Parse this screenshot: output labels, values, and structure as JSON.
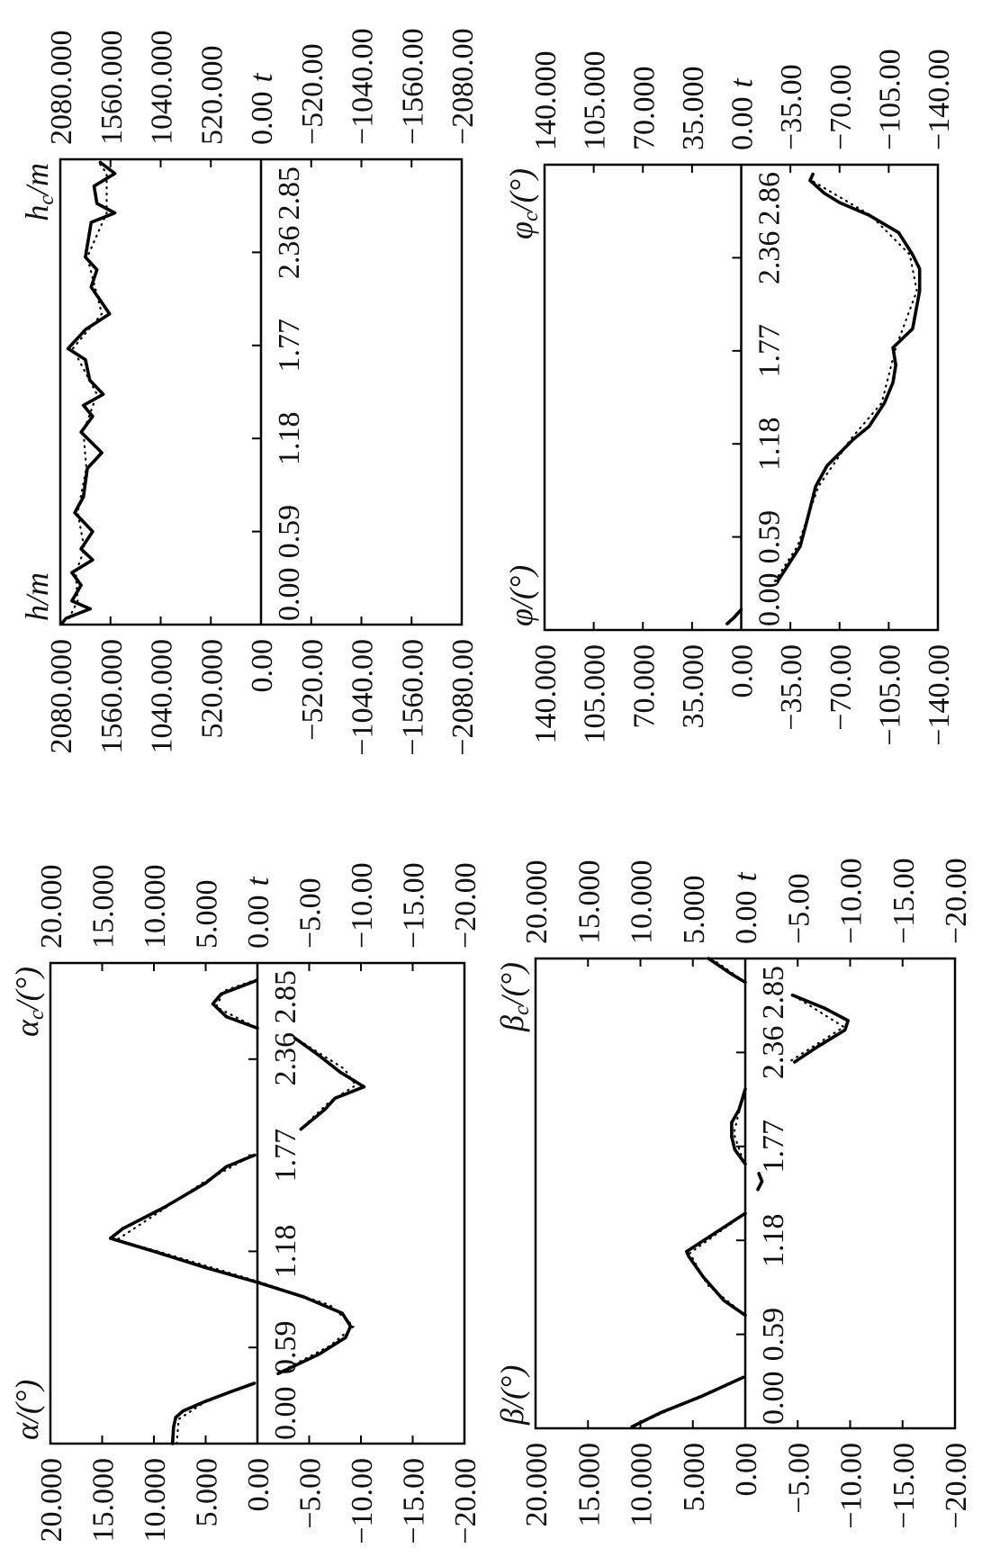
{
  "chart_data": [
    {
      "type": "line",
      "y_title": {
        "symbol": "α",
        "sub": "",
        "unit": "/(°)"
      },
      "y2_title": {
        "symbol": "α",
        "sub": "c",
        "unit": "/(°)"
      },
      "x_label": "t",
      "x_ticks": [
        "0.00",
        "0.59",
        "1.18",
        "1.77",
        "2.36",
        "2.85"
      ],
      "y_ticks": [
        "20.000",
        "15.000",
        "10.000",
        "5.000",
        "0.00",
        "−5.00",
        "−10.00",
        "−15.00",
        "−20.00"
      ],
      "xlim": [
        0,
        2.95
      ],
      "ylim": [
        -20,
        20
      ],
      "grid": false,
      "series": [
        {
          "name": "α/(°)",
          "style": "solid",
          "color": "#000000",
          "segments": [
            [
              [
                0,
                8.2
              ],
              [
                0.1,
                8.1
              ],
              [
                0.16,
                7.9
              ],
              [
                0.2,
                7.2
              ],
              [
                0.26,
                5.0
              ],
              [
                0.32,
                2.5
              ],
              [
                0.37,
                0.3
              ]
            ],
            [
              [
                0.43,
                -2
              ],
              [
                0.55,
                -6
              ],
              [
                0.65,
                -8.5
              ],
              [
                0.72,
                -9
              ],
              [
                0.8,
                -8.2
              ],
              [
                0.9,
                -4.5
              ],
              [
                0.99,
                0
              ],
              [
                1.08,
                5
              ],
              [
                1.18,
                10
              ],
              [
                1.26,
                14.2
              ],
              [
                1.32,
                13
              ],
              [
                1.45,
                9
              ],
              [
                1.6,
                5
              ],
              [
                1.7,
                3
              ],
              [
                1.77,
                0.3
              ]
            ],
            [
              [
                1.93,
                -4.2
              ],
              [
                2.05,
                -6.5
              ],
              [
                2.12,
                -7.5
              ],
              [
                2.19,
                -10.3
              ],
              [
                2.28,
                -8
              ],
              [
                2.38,
                -6
              ],
              [
                2.49,
                -3.6
              ]
            ],
            [
              [
                2.55,
                0
              ],
              [
                2.62,
                3
              ],
              [
                2.7,
                4.3
              ],
              [
                2.76,
                3.5
              ],
              [
                2.84,
                0.2
              ]
            ]
          ]
        },
        {
          "name": "α_c/(°)",
          "style": "dotted",
          "color": "#000000",
          "segments": [
            [
              [
                0,
                7.8
              ],
              [
                0.15,
                7.6
              ],
              [
                0.25,
                5.2
              ],
              [
                0.37,
                0.5
              ]
            ],
            [
              [
                0.45,
                -2.5
              ],
              [
                0.6,
                -7
              ],
              [
                0.72,
                -9.3
              ],
              [
                0.85,
                -7
              ],
              [
                0.99,
                -0.3
              ],
              [
                1.18,
                9.6
              ],
              [
                1.25,
                13.6
              ],
              [
                1.4,
                10
              ],
              [
                1.6,
                5.3
              ],
              [
                1.77,
                0.5
              ]
            ],
            [
              [
                1.95,
                -4.5
              ],
              [
                2.1,
                -7
              ],
              [
                2.2,
                -9.5
              ],
              [
                2.3,
                -8.4
              ],
              [
                2.48,
                -3.9
              ]
            ],
            [
              [
                2.56,
                0.3
              ],
              [
                2.68,
                4.0
              ],
              [
                2.78,
                3.2
              ],
              [
                2.85,
                0
              ]
            ]
          ]
        }
      ]
    },
    {
      "type": "line",
      "y_title": {
        "symbol": "β",
        "sub": "",
        "unit": "/(°)"
      },
      "y2_title": {
        "symbol": "β",
        "sub": "c",
        "unit": "/(°)"
      },
      "x_label": "t",
      "x_ticks": [
        "0.00",
        "0.59",
        "1.18",
        "1.77",
        "2.36",
        "2.85"
      ],
      "y_ticks": [
        "20.000",
        "15.000",
        "10.000",
        "5.000",
        "0.00",
        "−5.00",
        "−10.00",
        "−15.00",
        "−20.00"
      ],
      "xlim": [
        0,
        2.95
      ],
      "ylim": [
        -20,
        20
      ],
      "grid": false,
      "series": [
        {
          "name": "β/(°)",
          "style": "solid",
          "color": "#000000",
          "segments": [
            [
              [
                0.01,
                10.8
              ],
              [
                0.1,
                8
              ],
              [
                0.2,
                4.2
              ],
              [
                0.32,
                0.2
              ]
            ],
            [
              [
                0.71,
                0
              ],
              [
                0.8,
                2
              ],
              [
                0.95,
                4
              ],
              [
                1.08,
                5.4
              ],
              [
                1.11,
                5.6
              ],
              [
                1.2,
                3.5
              ],
              [
                1.35,
                0
              ]
            ],
            [
              [
                1.5,
                -1.2
              ],
              [
                1.55,
                -1.6
              ],
              [
                1.6,
                -1.3
              ]
            ],
            [
              [
                1.66,
                0
              ],
              [
                1.75,
                1
              ],
              [
                1.83,
                1.3
              ],
              [
                1.92,
                1.3
              ],
              [
                2.0,
                0.6
              ],
              [
                2.13,
                0
              ]
            ],
            [
              [
                2.3,
                -4.7
              ],
              [
                2.4,
                -7
              ],
              [
                2.5,
                -9.5
              ],
              [
                2.56,
                -9.8
              ],
              [
                2.64,
                -7.5
              ],
              [
                2.72,
                -4.5
              ]
            ],
            [
              [
                2.8,
                0
              ],
              [
                2.86,
                1.5
              ],
              [
                2.95,
                3.5
              ]
            ]
          ]
        },
        {
          "name": "β_c/(°)",
          "style": "dotted",
          "color": "#000000",
          "segments": [
            [
              [
                0.02,
                10.5
              ],
              [
                0.32,
                0.3
              ]
            ],
            [
              [
                0.72,
                0.2
              ],
              [
                0.9,
                3.6
              ],
              [
                1.1,
                5.3
              ],
              [
                1.34,
                0.2
              ]
            ],
            [
              [
                1.68,
                0.2
              ],
              [
                1.85,
                1.1
              ],
              [
                2.12,
                0.1
              ]
            ],
            [
              [
                2.31,
                -4.4
              ],
              [
                2.52,
                -9.4
              ],
              [
                2.71,
                -4.8
              ]
            ],
            [
              [
                2.81,
                0.2
              ],
              [
                2.95,
                3.2
              ]
            ]
          ]
        }
      ]
    },
    {
      "type": "line",
      "y_title": {
        "symbol": "h",
        "sub": "",
        "unit": "/m"
      },
      "y2_title": {
        "symbol": "h",
        "sub": "c",
        "unit": "/m"
      },
      "x_label": "t",
      "x_ticks": [
        "0.00",
        "0.59",
        "1.18",
        "1.77",
        "2.36",
        "2.85"
      ],
      "y_ticks": [
        "2080.000",
        "1560.000",
        "1040.000",
        "520.000",
        "0.00",
        "−520.00",
        "−1040.00",
        "−1560.00",
        "−2080.00"
      ],
      "xlim": [
        0,
        2.95
      ],
      "ylim": [
        -2080,
        2080
      ],
      "grid": false,
      "series": [
        {
          "name": "h/m",
          "style": "solid",
          "color": "#000000",
          "segments": [
            [
              [
                0.01,
                2060
              ],
              [
                0.04,
                2020
              ],
              [
                0.1,
                1770
              ],
              [
                0.15,
                1960
              ],
              [
                0.25,
                1865
              ],
              [
                0.33,
                1960
              ],
              [
                0.41,
                1745
              ],
              [
                0.48,
                1865
              ],
              [
                0.59,
                1745
              ],
              [
                0.71,
                1930
              ],
              [
                0.81,
                1840
              ],
              [
                0.99,
                1800
              ],
              [
                1.09,
                1650
              ],
              [
                1.22,
                1865
              ],
              [
                1.32,
                1745
              ],
              [
                1.39,
                1840
              ],
              [
                1.46,
                1635
              ],
              [
                1.55,
                1775
              ],
              [
                1.68,
                1820
              ],
              [
                1.75,
                2000
              ],
              [
                1.87,
                1820
              ],
              [
                1.97,
                1570
              ],
              [
                2.14,
                1760
              ],
              [
                2.25,
                1700
              ],
              [
                2.33,
                1820
              ],
              [
                2.55,
                1760
              ],
              [
                2.61,
                1515
              ],
              [
                2.67,
                1700
              ],
              [
                2.78,
                1730
              ],
              [
                2.86,
                1515
              ],
              [
                2.93,
                1665
              ]
            ]
          ]
        },
        {
          "name": "h_c/m",
          "style": "dotted",
          "color": "#000000",
          "segments": [
            [
              [
                0.04,
                1990
              ],
              [
                0.15,
                1900
              ],
              [
                0.33,
                1920
              ],
              [
                0.48,
                1830
              ],
              [
                0.71,
                1900
              ],
              [
                0.99,
                1810
              ],
              [
                1.22,
                1840
              ],
              [
                1.46,
                1700
              ],
              [
                1.75,
                1950
              ],
              [
                1.97,
                1650
              ],
              [
                2.33,
                1800
              ],
              [
                2.61,
                1600
              ],
              [
                2.86,
                1600
              ],
              [
                2.93,
                1680
              ]
            ]
          ]
        }
      ]
    },
    {
      "type": "line",
      "y_title": {
        "symbol": "φ",
        "sub": "",
        "unit": "/(°)"
      },
      "y2_title": {
        "symbol": "φ",
        "sub": "c",
        "unit": "/(°)"
      },
      "x_label": "t",
      "x_ticks": [
        "0.00",
        "0.59",
        "1.18",
        "1.77",
        "2.36",
        "2.86"
      ],
      "y_ticks": [
        "140.000",
        "105.000",
        "70.000",
        "35.000",
        "0.00",
        "−35.00",
        "−70.00",
        "−105.00",
        "−140.00"
      ],
      "xlim": [
        0,
        2.95
      ],
      "ylim": [
        -140,
        140
      ],
      "grid": false,
      "series": [
        {
          "name": "φ/(°)",
          "style": "solid",
          "color": "#000000",
          "segments": [
            [
              [
                0.04,
                10
              ],
              [
                0.08,
                5
              ],
              [
                0.13,
                0
              ]
            ],
            [
              [
                0.31,
                -26
              ],
              [
                0.53,
                -42
              ],
              [
                0.7,
                -47
              ],
              [
                0.91,
                -53
              ],
              [
                1.04,
                -61
              ],
              [
                1.21,
                -80
              ],
              [
                1.29,
                -91
              ],
              [
                1.44,
                -102
              ],
              [
                1.57,
                -108
              ],
              [
                1.68,
                -110
              ],
              [
                1.79,
                -108
              ],
              [
                1.91,
                -122
              ],
              [
                2.15,
                -127
              ],
              [
                2.29,
                -127
              ],
              [
                2.38,
                -122
              ],
              [
                2.52,
                -112
              ],
              [
                2.63,
                -91
              ],
              [
                2.71,
                -70
              ],
              [
                2.77,
                -59
              ],
              [
                2.85,
                -49
              ],
              [
                2.89,
                -51
              ]
            ]
          ]
        },
        {
          "name": "φ_c/(°)",
          "style": "dotted",
          "color": "#000000",
          "segments": [
            [
              [
                0.04,
                9
              ],
              [
                0.13,
                1
              ]
            ],
            [
              [
                0.31,
                -24
              ],
              [
                0.53,
                -40
              ],
              [
                0.91,
                -55
              ],
              [
                1.21,
                -78
              ],
              [
                1.44,
                -100
              ],
              [
                1.79,
                -110
              ],
              [
                2.15,
                -125
              ],
              [
                2.38,
                -120
              ],
              [
                2.63,
                -92
              ],
              [
                2.85,
                -50
              ],
              [
                2.89,
                -50
              ]
            ]
          ]
        }
      ]
    }
  ]
}
